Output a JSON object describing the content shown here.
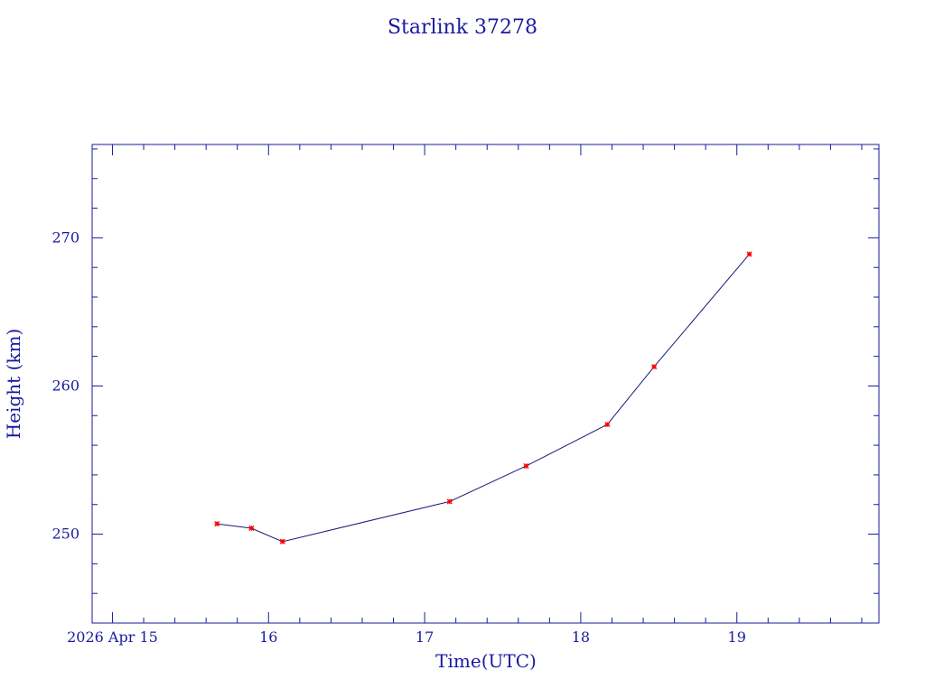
{
  "chart_data": {
    "type": "line",
    "title": "Starlink 37278",
    "xlabel": "Time(UTC)",
    "ylabel": "Height (km)",
    "x_tick_labels": [
      {
        "day": 15,
        "label": "2026 Apr 15"
      },
      {
        "day": 16,
        "label": "16"
      },
      {
        "day": 17,
        "label": "17"
      },
      {
        "day": 18,
        "label": "18"
      },
      {
        "day": 19,
        "label": "19"
      }
    ],
    "y_tick_labels": [
      "250",
      "260",
      "270"
    ],
    "xlim": [
      14.87,
      19.91
    ],
    "ylim": [
      244,
      276.3
    ],
    "grid": false,
    "series": [
      {
        "x": [
          15.67,
          15.89,
          16.09,
          17.16,
          17.65,
          18.17,
          18.47,
          19.08
        ],
        "y": [
          250.7,
          250.4,
          249.5,
          252.2,
          254.6,
          257.4,
          261.3,
          268.9
        ]
      }
    ],
    "colors": {
      "axis": "#1a1aa0",
      "line": "#1a1a7a",
      "marker": "#ff0000"
    }
  }
}
